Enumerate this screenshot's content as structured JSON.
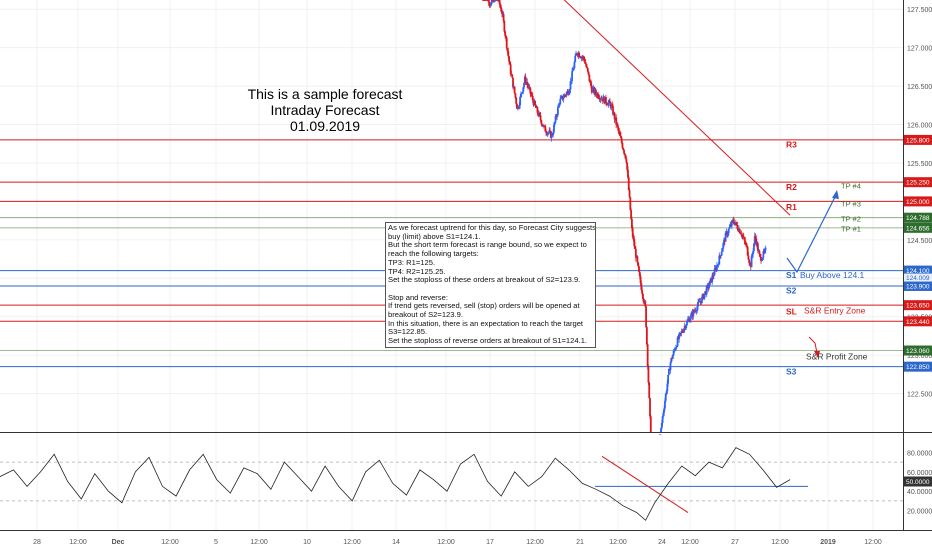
{
  "title": {
    "line1": "This is a sample forecast",
    "line2": "Intraday Forecast",
    "line3": "01.09.2019"
  },
  "note_lines": [
    "As we forecast uptrend for this day, so Forecast City suggests",
    "buy (limit) above S1=124.1.",
    "But the short term forecast is range bound, so we expect to",
    "reach the following targets:",
    "TP3: R1=125.",
    "TP4: R2=125.25.",
    "Set the stoploss of these orders at breakout of S2=123.9.",
    "",
    "Stop and reverse:",
    "If trend gets reversed, sell (stop) orders will be opened at",
    "breakout of S2=123.9.",
    "In this situation, there is an expectation to reach the target",
    "S3=122.85.",
    "Set the stoploss of reverse orders at breakout of S1=124.1."
  ],
  "colors": {
    "up": "#2962ff",
    "down": "#e0151b",
    "resistance": "#d81a1a",
    "support": "#2d67c9",
    "target": "#7fa26e",
    "grid": "#f0f0f0",
    "axis_text": "#555555"
  },
  "chart_data": {
    "type": "candlestick",
    "y_range": [
      122.0,
      127.62
    ],
    "price_ticks": [
      "127.500",
      "127.000",
      "126.500",
      "126.000",
      "125.500",
      "125.000",
      "124.500",
      "124.000",
      "123.500",
      "123.000",
      "122.500"
    ],
    "time_ticks": [
      "28",
      "12:00",
      "Dec",
      "12:00",
      "5",
      "12:00",
      "10",
      "12:00",
      "14",
      "12:00",
      "17",
      "12:00",
      "21",
      "12:00",
      "24",
      "12:00",
      "27",
      "12:00",
      "2019",
      "12:00",
      "4",
      "12:00",
      "7",
      "12:00",
      "9",
      "12:00",
      "14"
    ],
    "price_path": [
      {
        "x": 0.0,
        "p": 127.85
      },
      {
        "x": 0.02,
        "p": 127.55
      },
      {
        "x": 0.035,
        "p": 127.7
      },
      {
        "x": 0.05,
        "p": 127.45
      },
      {
        "x": 0.07,
        "p": 126.75
      },
      {
        "x": 0.09,
        "p": 126.2
      },
      {
        "x": 0.11,
        "p": 126.6
      },
      {
        "x": 0.135,
        "p": 126.25
      },
      {
        "x": 0.16,
        "p": 125.95
      },
      {
        "x": 0.18,
        "p": 125.85
      },
      {
        "x": 0.2,
        "p": 126.3
      },
      {
        "x": 0.225,
        "p": 126.45
      },
      {
        "x": 0.245,
        "p": 126.95
      },
      {
        "x": 0.265,
        "p": 126.85
      },
      {
        "x": 0.285,
        "p": 126.45
      },
      {
        "x": 0.31,
        "p": 126.35
      },
      {
        "x": 0.335,
        "p": 126.25
      },
      {
        "x": 0.355,
        "p": 125.9
      },
      {
        "x": 0.375,
        "p": 125.55
      },
      {
        "x": 0.39,
        "p": 124.6
      },
      {
        "x": 0.41,
        "p": 124.0
      },
      {
        "x": 0.425,
        "p": 123.6
      },
      {
        "x": 0.44,
        "p": 121.8
      },
      {
        "x": 0.455,
        "p": 121.6
      },
      {
        "x": 0.47,
        "p": 122.2
      },
      {
        "x": 0.49,
        "p": 122.9
      },
      {
        "x": 0.51,
        "p": 123.2
      },
      {
        "x": 0.53,
        "p": 123.4
      },
      {
        "x": 0.55,
        "p": 123.55
      },
      {
        "x": 0.575,
        "p": 123.75
      },
      {
        "x": 0.595,
        "p": 123.95
      },
      {
        "x": 0.615,
        "p": 124.2
      },
      {
        "x": 0.635,
        "p": 124.55
      },
      {
        "x": 0.655,
        "p": 124.75
      },
      {
        "x": 0.675,
        "p": 124.6
      },
      {
        "x": 0.69,
        "p": 124.4
      },
      {
        "x": 0.7,
        "p": 124.15
      },
      {
        "x": 0.712,
        "p": 124.55
      },
      {
        "x": 0.725,
        "p": 124.25
      },
      {
        "x": 0.74,
        "p": 124.35
      }
    ],
    "levels": [
      {
        "price": 125.8,
        "tag": "125.800",
        "style": "resistance"
      },
      {
        "price": 125.25,
        "tag": "125.250",
        "style": "resistance"
      },
      {
        "price": 125.0,
        "tag": "125.000",
        "style": "resistance"
      },
      {
        "price": 124.788,
        "tag": "124.788",
        "style": "target"
      },
      {
        "price": 124.656,
        "tag": "124.656",
        "style": "target"
      },
      {
        "price": 124.1,
        "tag": "124.100",
        "style": "support"
      },
      {
        "price": 123.9,
        "tag": "123.900",
        "style": "support"
      },
      {
        "price": 123.65,
        "tag": "123.650",
        "style": "resistance"
      },
      {
        "price": 123.44,
        "tag": "123.440",
        "style": "resistance"
      },
      {
        "price": 123.06,
        "tag": "123.060",
        "style": "target"
      },
      {
        "price": 122.85,
        "tag": "122.850",
        "style": "support"
      }
    ],
    "last_price_tag": "124.009",
    "level_labels": [
      {
        "text": "R3",
        "price": 125.74,
        "style": "resistance"
      },
      {
        "text": "R2",
        "price": 125.19,
        "style": "resistance"
      },
      {
        "text": "R1",
        "price": 124.93,
        "style": "resistance"
      },
      {
        "text": "S1",
        "price": 124.04,
        "style": "support"
      },
      {
        "text": "S2",
        "price": 123.84,
        "style": "support"
      },
      {
        "text": "SL",
        "price": 123.57,
        "style": "resistance"
      },
      {
        "text": "S3",
        "price": 122.79,
        "style": "support"
      }
    ],
    "target_labels": [
      {
        "text": "TP #4",
        "price": 125.21
      },
      {
        "text": "TP #3",
        "price": 124.97
      },
      {
        "text": "TP #2",
        "price": 124.78
      },
      {
        "text": "TP #1",
        "price": 124.65
      }
    ],
    "zone_labels": [
      {
        "text": "Buy Above 124.1",
        "price": 124.04,
        "style": "support"
      },
      {
        "text": "S&R Entry Zone",
        "price": 123.58,
        "style": "resistance"
      },
      {
        "text": "S&R Profit Zone",
        "price": 122.98,
        "style": "text"
      }
    ],
    "oscillator": {
      "y_range": [
        0,
        100
      ],
      "ticks": [
        "80.0000",
        "60.0000",
        "40.0000",
        "20.0000"
      ],
      "current_tag": "50.0000",
      "upper_band": 70,
      "lower_band": 30,
      "path": [
        {
          "x": 0.0,
          "v": 55
        },
        {
          "x": 0.015,
          "v": 62
        },
        {
          "x": 0.03,
          "v": 45
        },
        {
          "x": 0.045,
          "v": 60
        },
        {
          "x": 0.06,
          "v": 78
        },
        {
          "x": 0.075,
          "v": 50
        },
        {
          "x": 0.09,
          "v": 32
        },
        {
          "x": 0.105,
          "v": 58
        },
        {
          "x": 0.12,
          "v": 40
        },
        {
          "x": 0.135,
          "v": 28
        },
        {
          "x": 0.15,
          "v": 60
        },
        {
          "x": 0.165,
          "v": 75
        },
        {
          "x": 0.18,
          "v": 45
        },
        {
          "x": 0.195,
          "v": 35
        },
        {
          "x": 0.21,
          "v": 62
        },
        {
          "x": 0.225,
          "v": 78
        },
        {
          "x": 0.24,
          "v": 52
        },
        {
          "x": 0.255,
          "v": 38
        },
        {
          "x": 0.27,
          "v": 64
        },
        {
          "x": 0.285,
          "v": 58
        },
        {
          "x": 0.3,
          "v": 42
        },
        {
          "x": 0.315,
          "v": 70
        },
        {
          "x": 0.33,
          "v": 55
        },
        {
          "x": 0.345,
          "v": 40
        },
        {
          "x": 0.36,
          "v": 66
        },
        {
          "x": 0.375,
          "v": 45
        },
        {
          "x": 0.39,
          "v": 30
        },
        {
          "x": 0.405,
          "v": 60
        },
        {
          "x": 0.42,
          "v": 72
        },
        {
          "x": 0.435,
          "v": 48
        },
        {
          "x": 0.45,
          "v": 36
        },
        {
          "x": 0.465,
          "v": 62
        },
        {
          "x": 0.48,
          "v": 52
        },
        {
          "x": 0.495,
          "v": 40
        },
        {
          "x": 0.51,
          "v": 68
        },
        {
          "x": 0.525,
          "v": 78
        },
        {
          "x": 0.54,
          "v": 50
        },
        {
          "x": 0.555,
          "v": 35
        },
        {
          "x": 0.57,
          "v": 60
        },
        {
          "x": 0.585,
          "v": 45
        },
        {
          "x": 0.6,
          "v": 55
        },
        {
          "x": 0.615,
          "v": 74
        },
        {
          "x": 0.63,
          "v": 62
        },
        {
          "x": 0.645,
          "v": 48
        },
        {
          "x": 0.66,
          "v": 42
        },
        {
          "x": 0.675,
          "v": 35
        },
        {
          "x": 0.69,
          "v": 25
        },
        {
          "x": 0.705,
          "v": 18
        },
        {
          "x": 0.715,
          "v": 10
        },
        {
          "x": 0.725,
          "v": 28
        },
        {
          "x": 0.74,
          "v": 48
        },
        {
          "x": 0.755,
          "v": 66
        },
        {
          "x": 0.77,
          "v": 56
        },
        {
          "x": 0.785,
          "v": 70
        },
        {
          "x": 0.8,
          "v": 64
        },
        {
          "x": 0.815,
          "v": 85
        },
        {
          "x": 0.83,
          "v": 78
        },
        {
          "x": 0.845,
          "v": 62
        },
        {
          "x": 0.86,
          "v": 44
        },
        {
          "x": 0.875,
          "v": 52
        }
      ]
    }
  }
}
